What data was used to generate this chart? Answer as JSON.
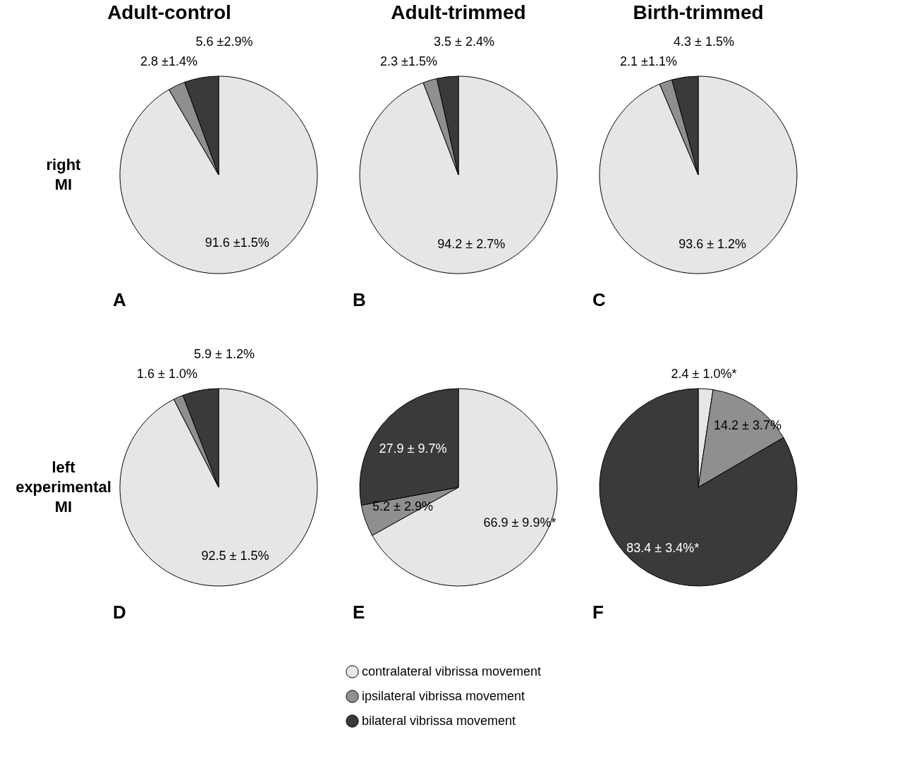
{
  "chart_data": [
    {
      "type": "pie",
      "title": "Adult-control",
      "ylabel": "right\nMI",
      "annotations": [
        "A"
      ],
      "categories": [
        "contralateral vibrissa movement",
        "ipsilateral vibrissa movement",
        "bilateral vibrissa movement"
      ],
      "values": [
        91.6,
        2.8,
        5.6
      ],
      "value_labels": [
        "91.6 ±1.5%",
        "2.8 ±1.4%",
        "5.6 ±2.9%"
      ],
      "colors": [
        "#e6e6e6",
        "#8f8f8f",
        "#3a3a3a"
      ],
      "legend": "bottom"
    },
    {
      "type": "pie",
      "title": "Adult-trimmed",
      "annotations": [
        "B"
      ],
      "categories": [
        null,
        null,
        null
      ],
      "values": [
        94.2,
        2.3,
        3.5
      ],
      "value_labels": [
        "94.2 ± 2.7%",
        "2.3 ±1.5%",
        "3.5 ± 2.4%"
      ],
      "colors": [
        "#e6e6e6",
        "#8f8f8f",
        "#3a3a3a"
      ]
    },
    {
      "type": "pie",
      "title": "Birth-trimmed",
      "annotations": [
        "C"
      ],
      "categories": [
        null,
        null,
        null
      ],
      "values": [
        93.6,
        2.1,
        4.3
      ],
      "value_labels": [
        "93.6 ± 1.2%",
        "2.1 ±1.1%",
        "4.3 ± 1.5%"
      ],
      "colors": [
        "#e6e6e6",
        "#8f8f8f",
        "#3a3a3a"
      ]
    },
    {
      "type": "pie",
      "ylabel": "left\nexperimental\nMI",
      "annotations": [
        "D"
      ],
      "categories": [
        null,
        null,
        null
      ],
      "values": [
        92.5,
        1.6,
        5.9
      ],
      "value_labels": [
        "92.5 ± 1.5%",
        "1.6 ± 1.0%",
        "5.9 ± 1.2%"
      ],
      "colors": [
        "#e6e6e6",
        "#8f8f8f",
        "#3a3a3a"
      ]
    },
    {
      "type": "pie",
      "annotations": [
        "E"
      ],
      "categories": [
        null,
        null,
        null
      ],
      "values": [
        66.9,
        5.2,
        27.9
      ],
      "value_labels": [
        "66.9 ± 9.9%*",
        "5.2 ± 2.9%",
        "27.9 ± 9.7%"
      ],
      "colors": [
        "#e6e6e6",
        "#8f8f8f",
        "#3a3a3a"
      ]
    },
    {
      "type": "pie",
      "annotations": [
        "F"
      ],
      "categories": [
        null,
        null,
        null
      ],
      "values": [
        2.4,
        14.2,
        83.4
      ],
      "value_labels": [
        "2.4 ± 1.0%*",
        "14.2 ± 3.7%",
        "83.4 ± 3.4%*"
      ],
      "colors": [
        "#e6e6e6",
        "#8f8f8f",
        "#3a3a3a"
      ]
    }
  ]
}
